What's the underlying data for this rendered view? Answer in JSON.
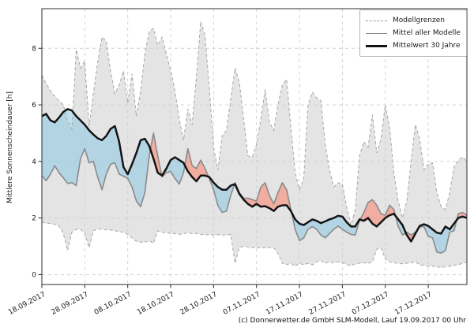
{
  "ylabel": "Mittlere Sonnenscheindauer [h]",
  "caption": "(c) Donnerwetter.de GmbH SLM-Modell, Lauf 19.09.2017 00 Uhr",
  "legend": [
    "Modellgrenzen",
    "Mittel aller Modelle",
    "Mittelwert 30 Jahre"
  ],
  "chart_data": {
    "type": "line",
    "title": "",
    "xlabel": "",
    "x_start_date": "18.09.2017",
    "x_interval_days": 1,
    "x_tick_days": [
      0,
      10,
      20,
      30,
      40,
      50,
      60,
      70,
      80,
      90
    ],
    "x_tick_labels": [
      "18.09.2017",
      "28.09.2017",
      "08.10.2017",
      "18.10.2017",
      "28.10.2017",
      "07.11.2017",
      "17.11.2017",
      "27.11.2017",
      "07.12.2017",
      "17.12.2017"
    ],
    "ylim": [
      -0.35,
      9.4
    ],
    "yticks": [
      0,
      2,
      4,
      6,
      8
    ],
    "grid": true,
    "legend_position": "upper right",
    "series": [
      {
        "name": "Modellgrenzen (obere Grenze)",
        "role": "upper_bound",
        "values": [
          7.05,
          6.75,
          6.5,
          6.3,
          6.15,
          6.0,
          5.4,
          5.15,
          7.95,
          7.3,
          7.55,
          5.25,
          6.4,
          7.5,
          8.4,
          8.25,
          7.2,
          6.4,
          6.7,
          7.2,
          6.05,
          7.1,
          5.6,
          6.5,
          7.8,
          8.6,
          8.7,
          8.1,
          8.4,
          7.8,
          7.2,
          6.5,
          5.5,
          4.75,
          5.85,
          5.3,
          7.0,
          8.95,
          8.45,
          6.6,
          4.5,
          3.7,
          4.9,
          5.1,
          6.2,
          7.3,
          6.8,
          5.5,
          4.2,
          4.15,
          4.6,
          5.5,
          6.55,
          5.4,
          5.1,
          6.0,
          6.7,
          6.9,
          5.2,
          3.6,
          3.0,
          3.4,
          6.0,
          6.45,
          6.25,
          6.15,
          4.6,
          3.7,
          3.1,
          3.25,
          3.2,
          2.4,
          1.75,
          2.3,
          4.2,
          4.7,
          4.5,
          5.65,
          4.3,
          4.8,
          6.0,
          5.2,
          3.6,
          2.6,
          2.0,
          2.6,
          4.0,
          5.3,
          4.8,
          3.7,
          3.9,
          3.95,
          2.9,
          2.4,
          2.3,
          2.9,
          3.8,
          4.05,
          4.15,
          4.0
        ]
      },
      {
        "name": "Modellgrenzen (untere Grenze)",
        "role": "lower_bound",
        "values": [
          1.85,
          1.82,
          1.8,
          1.78,
          1.72,
          1.45,
          0.85,
          1.5,
          1.6,
          1.6,
          1.45,
          0.95,
          1.55,
          1.62,
          1.6,
          1.58,
          1.58,
          1.55,
          1.52,
          1.5,
          1.42,
          1.3,
          1.18,
          1.15,
          1.15,
          1.2,
          1.1,
          1.55,
          1.5,
          1.48,
          1.45,
          1.45,
          1.42,
          1.45,
          1.48,
          1.45,
          1.45,
          1.42,
          1.4,
          1.42,
          1.4,
          1.42,
          1.4,
          1.4,
          1.42,
          0.4,
          0.95,
          1.0,
          0.98,
          0.95,
          0.95,
          0.95,
          0.95,
          0.95,
          0.95,
          0.75,
          0.4,
          0.35,
          0.4,
          0.3,
          0.4,
          0.35,
          0.4,
          0.35,
          0.45,
          0.5,
          0.4,
          0.45,
          0.42,
          0.45,
          0.42,
          0.35,
          0.32,
          0.38,
          0.4,
          0.42,
          0.4,
          0.45,
          0.9,
          0.95,
          0.55,
          0.45,
          0.42,
          0.4,
          0.38,
          0.4,
          0.42,
          0.45,
          0.35,
          0.32,
          0.3,
          0.3,
          0.28,
          0.25,
          0.28,
          0.3,
          0.33,
          0.35,
          0.4,
          0.45
        ]
      },
      {
        "name": "Mittel aller Modelle",
        "role": "model_mean",
        "values": [
          3.5,
          3.32,
          3.55,
          3.85,
          3.6,
          3.42,
          3.22,
          3.25,
          3.15,
          4.1,
          4.45,
          3.95,
          4.0,
          3.45,
          3.0,
          3.55,
          3.9,
          3.95,
          3.55,
          3.48,
          3.4,
          3.1,
          2.6,
          2.4,
          2.9,
          4.2,
          5.0,
          4.2,
          3.45,
          3.6,
          3.65,
          3.4,
          3.2,
          3.6,
          4.45,
          3.85,
          3.75,
          4.05,
          3.75,
          3.4,
          3.0,
          2.45,
          2.2,
          2.25,
          2.8,
          3.25,
          2.9,
          2.7,
          2.7,
          2.65,
          2.6,
          3.1,
          3.25,
          2.8,
          2.5,
          2.9,
          3.25,
          3.0,
          2.3,
          1.6,
          1.2,
          1.3,
          1.6,
          1.7,
          1.6,
          1.4,
          1.3,
          1.45,
          1.6,
          1.72,
          1.6,
          1.5,
          1.42,
          1.4,
          1.9,
          2.2,
          2.55,
          2.65,
          2.45,
          2.15,
          2.1,
          2.45,
          2.3,
          1.7,
          1.4,
          1.5,
          1.4,
          1.5,
          1.68,
          1.7,
          1.35,
          1.3,
          0.8,
          0.76,
          0.85,
          1.5,
          1.55,
          2.15,
          2.2,
          2.1
        ]
      },
      {
        "name": "Mittelwert 30 Jahre",
        "role": "climate_mean",
        "values": [
          5.6,
          5.68,
          5.45,
          5.38,
          5.55,
          5.75,
          5.85,
          5.8,
          5.6,
          5.45,
          5.3,
          5.1,
          4.95,
          4.82,
          4.75,
          4.9,
          5.15,
          5.25,
          4.7,
          3.8,
          3.55,
          3.9,
          4.3,
          4.75,
          4.8,
          4.55,
          4.1,
          3.6,
          3.5,
          3.75,
          4.05,
          4.15,
          4.05,
          3.95,
          3.65,
          3.45,
          3.3,
          3.5,
          3.5,
          3.45,
          3.25,
          3.1,
          3.0,
          3.0,
          3.15,
          3.2,
          2.85,
          2.65,
          2.5,
          2.4,
          2.5,
          2.4,
          2.42,
          2.35,
          2.25,
          2.4,
          2.45,
          2.45,
          2.25,
          1.95,
          1.8,
          1.75,
          1.85,
          1.95,
          1.9,
          1.82,
          1.88,
          1.95,
          2.0,
          2.08,
          2.05,
          1.85,
          1.7,
          1.7,
          1.95,
          1.9,
          2.0,
          1.8,
          1.7,
          1.85,
          2.0,
          2.1,
          2.15,
          1.95,
          1.75,
          1.4,
          1.17,
          1.45,
          1.72,
          1.78,
          1.72,
          1.6,
          1.48,
          1.45,
          1.7,
          1.6,
          1.8,
          2.0,
          2.05,
          2.0
        ]
      }
    ],
    "colors": {
      "band_fill": "#e4e4e4",
      "band_edge": "#a6a6a6",
      "model_mean_line": "#8a8a8a",
      "climate_mean_line": "#141414",
      "below_normal_fill": "rgba(146,203,226,0.6)",
      "above_normal_fill": "rgba(250,137,115,0.6)",
      "grid": "#cfcfcf",
      "spine": "#2b2b2b",
      "text": "#1a1a1a"
    }
  }
}
